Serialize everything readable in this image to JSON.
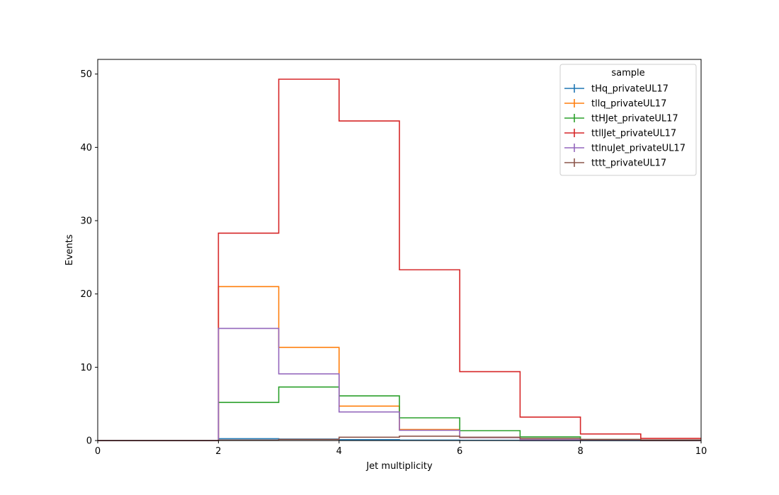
{
  "chart_data": {
    "type": "line",
    "style": "step-histogram",
    "xlabel": "Jet multiplicity",
    "ylabel": "Events",
    "xlim": [
      0,
      10
    ],
    "ylim": [
      0,
      52
    ],
    "x_ticks": [
      0,
      2,
      4,
      6,
      8,
      10
    ],
    "y_ticks": [
      0,
      10,
      20,
      30,
      40,
      50
    ],
    "bin_edges": [
      0,
      1,
      2,
      3,
      4,
      5,
      6,
      7,
      8,
      9,
      10
    ],
    "grid": false,
    "legend": {
      "title": "sample",
      "placement": "top-right"
    },
    "series": [
      {
        "name": "tHq_privateUL17",
        "color": "#1f77b4",
        "values": [
          0,
          0,
          0.25,
          0.2,
          0.12,
          0.06,
          0.03,
          0.01,
          0.005,
          0
        ]
      },
      {
        "name": "tllq_privateUL17",
        "color": "#ff7f0e",
        "values": [
          0,
          0,
          21.0,
          12.7,
          4.7,
          1.5,
          0.4,
          0.1,
          0.05,
          0
        ]
      },
      {
        "name": "ttHJet_privateUL17",
        "color": "#2ca02c",
        "values": [
          0,
          0,
          5.2,
          7.3,
          6.1,
          3.1,
          1.35,
          0.5,
          0.15,
          0.05
        ]
      },
      {
        "name": "ttllJet_privateUL17",
        "color": "#d62728",
        "values": [
          0,
          0,
          28.3,
          49.3,
          43.6,
          23.3,
          9.4,
          3.2,
          0.9,
          0.3
        ]
      },
      {
        "name": "ttlnuJet_privateUL17",
        "color": "#9467bd",
        "values": [
          0,
          0,
          15.3,
          9.1,
          3.9,
          1.4,
          0.4,
          0.1,
          0.03,
          0
        ]
      },
      {
        "name": "tttt_privateUL17",
        "color": "#8c564b",
        "values": [
          0,
          0,
          0.05,
          0.15,
          0.45,
          0.6,
          0.45,
          0.3,
          0.15,
          0.08
        ]
      }
    ]
  }
}
